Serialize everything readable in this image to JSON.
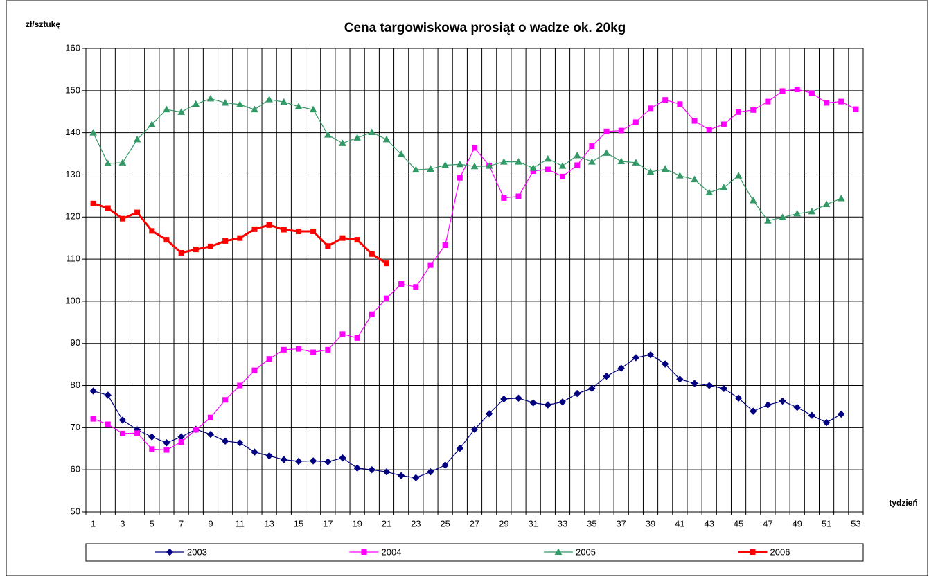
{
  "chart_data": {
    "type": "line",
    "title": "Cena targowiskowa prosiąt o wadze ok. 20kg",
    "y_label": "zł/sztukę",
    "x_label": "tydzień",
    "categories": [
      1,
      null,
      3,
      null,
      5,
      null,
      7,
      null,
      9,
      null,
      11,
      null,
      13,
      null,
      15,
      null,
      17,
      null,
      19,
      null,
      21,
      null,
      23,
      null,
      25,
      null,
      27,
      null,
      29,
      null,
      31,
      null,
      33,
      null,
      35,
      null,
      37,
      null,
      39,
      null,
      41,
      null,
      43,
      null,
      45,
      null,
      47,
      null,
      49,
      null,
      51,
      null,
      53
    ],
    "ylim": [
      50,
      160
    ],
    "yticks": [
      50,
      60,
      70,
      80,
      90,
      100,
      110,
      120,
      130,
      140,
      150,
      160
    ],
    "grid": true,
    "legend": "bottom",
    "series": [
      {
        "name": "2003",
        "color": "#000080",
        "marker": "diamond",
        "values": [
          78.7,
          77.7,
          71.8,
          69.5,
          67.8,
          66.4,
          67.8,
          69.6,
          68.4,
          66.8,
          66.4,
          64.2,
          63.3,
          62.4,
          62.0,
          62.1,
          61.9,
          62.8,
          60.4,
          60.0,
          59.5,
          58.6,
          58.1,
          59.5,
          61.1,
          65.1,
          69.6,
          73.3,
          76.8,
          77.0,
          75.9,
          75.4,
          76.1,
          78.1,
          79.3,
          82.2,
          84.1,
          86.6,
          87.3,
          85.1,
          81.5,
          80.5,
          80.0,
          79.3,
          77.0,
          73.9,
          75.4,
          76.3,
          74.8,
          72.9,
          71.2,
          73.2,
          null
        ]
      },
      {
        "name": "2004",
        "color": "#ff00ff",
        "marker": "square",
        "values": [
          72.1,
          70.8,
          68.6,
          68.7,
          64.9,
          64.7,
          66.6,
          69.5,
          72.4,
          76.6,
          80.0,
          83.6,
          86.3,
          88.5,
          88.7,
          87.9,
          88.5,
          92.2,
          91.3,
          96.9,
          100.7,
          104.1,
          103.4,
          108.6,
          113.3,
          129.3,
          136.4,
          132.2,
          124.5,
          124.9,
          130.9,
          131.3,
          129.6,
          132.3,
          136.8,
          140.3,
          140.5,
          142.5,
          145.8,
          147.8,
          146.8,
          142.8,
          140.7,
          142.0,
          144.9,
          145.4,
          147.4,
          149.9,
          150.3,
          149.4,
          147.1,
          147.4,
          145.6
        ]
      },
      {
        "name": "2005",
        "color": "#339966",
        "marker": "triangle",
        "values": [
          140.0,
          132.7,
          132.9,
          138.4,
          142.0,
          145.5,
          144.9,
          146.8,
          148.1,
          147.1,
          146.7,
          145.5,
          147.9,
          147.3,
          146.2,
          145.5,
          139.5,
          137.5,
          138.8,
          140.1,
          138.4,
          134.9,
          131.2,
          131.4,
          132.3,
          132.5,
          132.0,
          132.1,
          133.1,
          133.1,
          131.6,
          133.8,
          132.1,
          134.6,
          133.1,
          135.2,
          133.2,
          132.9,
          130.7,
          131.4,
          129.8,
          128.9,
          125.8,
          127.0,
          129.8,
          123.9,
          119.1,
          119.9,
          120.8,
          121.3,
          123.0,
          124.4,
          null
        ]
      },
      {
        "name": "2006",
        "color": "#ff0000",
        "marker": "square",
        "width": 3,
        "values": [
          123.2,
          122.1,
          119.6,
          121.1,
          116.7,
          114.6,
          111.5,
          112.3,
          113.0,
          114.3,
          115.0,
          117.1,
          118.1,
          117.0,
          116.6,
          116.6,
          113.1,
          115.0,
          114.6,
          111.2,
          109.0,
          null,
          null,
          null,
          null,
          null,
          null,
          null,
          null,
          null,
          null,
          null,
          null,
          null,
          null,
          null,
          null,
          null,
          null,
          null,
          null,
          null,
          null,
          null,
          null,
          null,
          null,
          null,
          null,
          null,
          null,
          null,
          null
        ]
      }
    ]
  }
}
